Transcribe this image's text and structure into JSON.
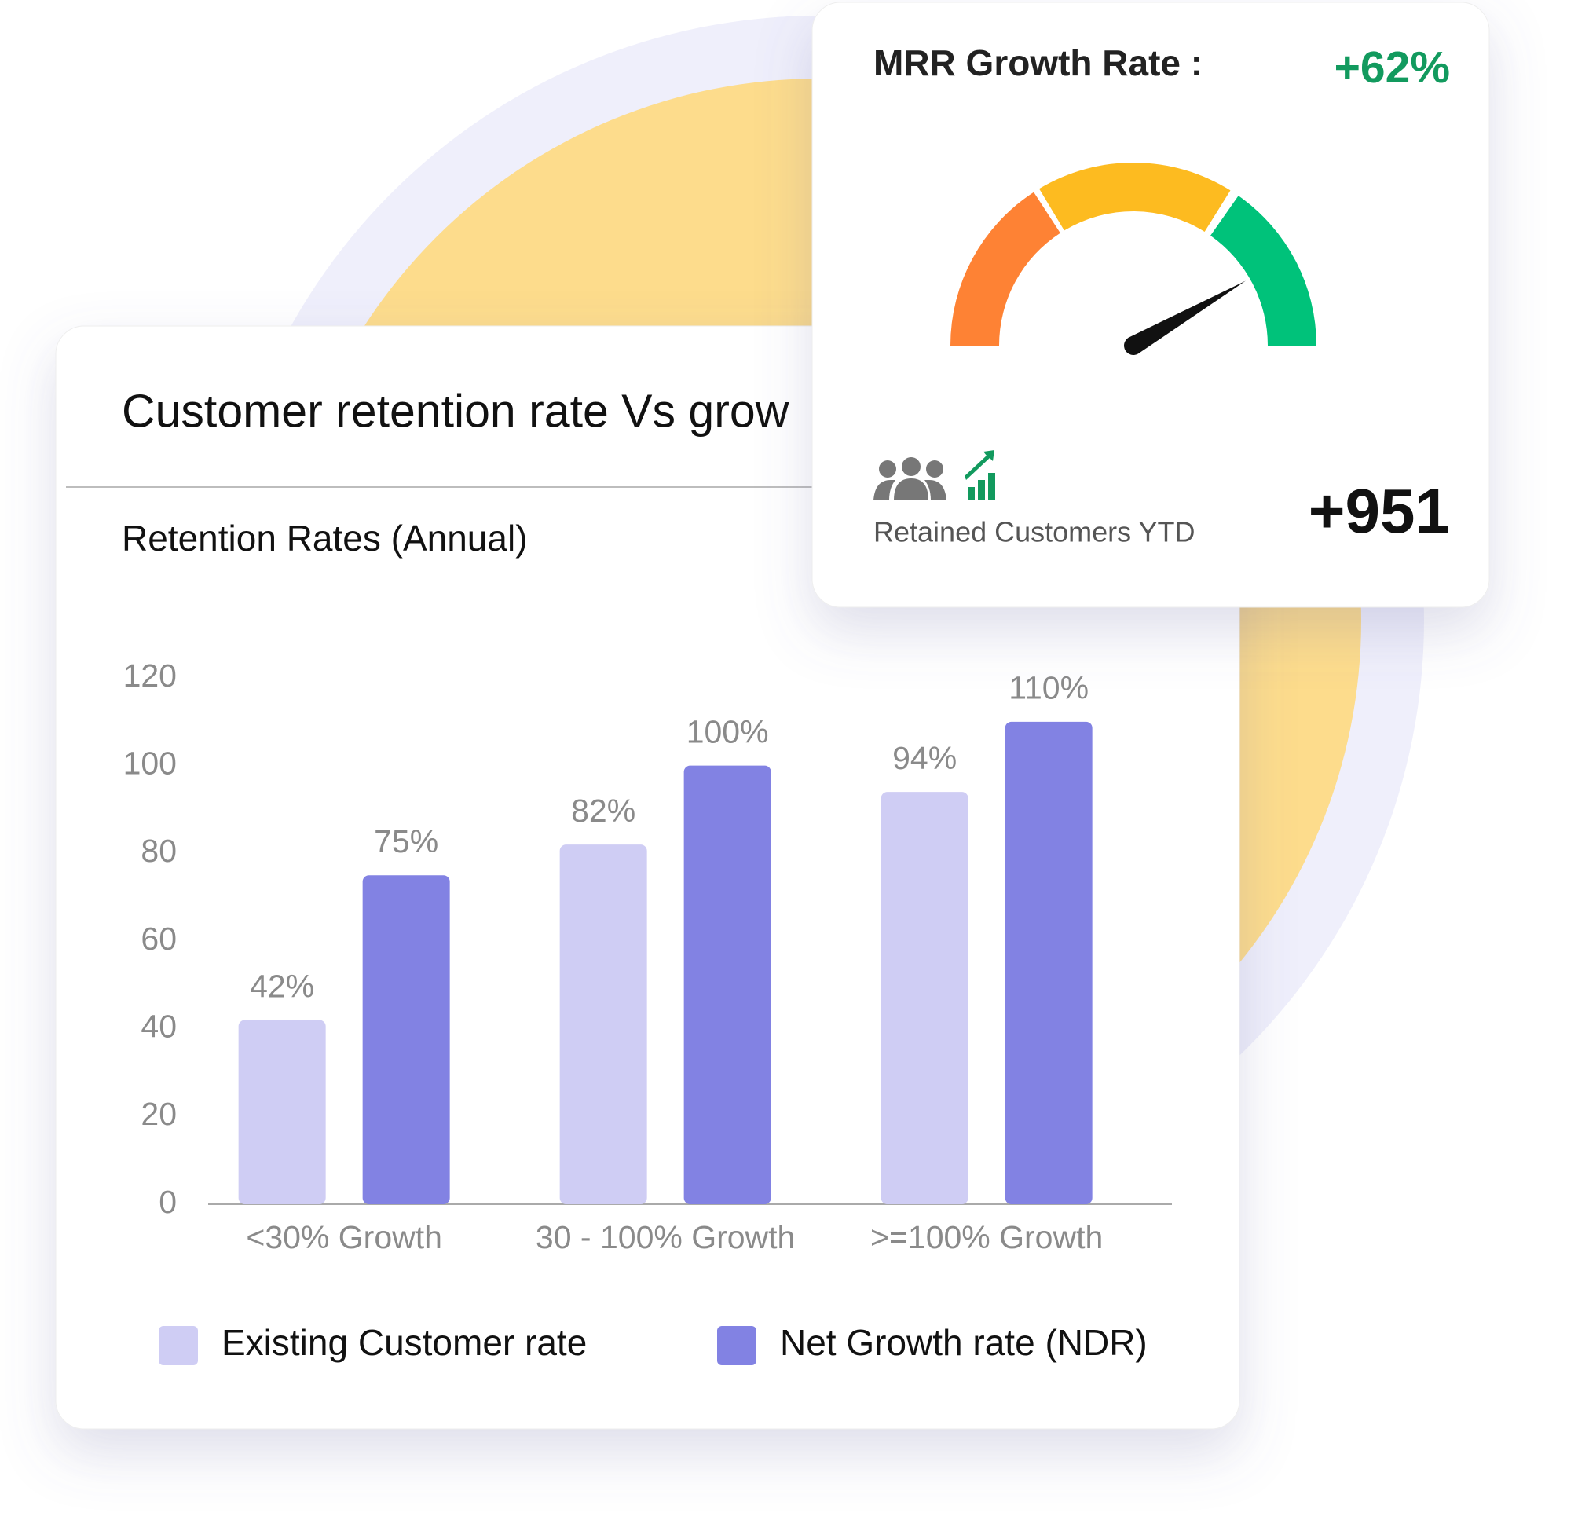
{
  "chart_data": {
    "type": "bar",
    "title": "Customer retention rate Vs grow",
    "subtitle": "Retention Rates (Annual)",
    "categories": [
      "<30% Growth",
      "30 - 100% Growth",
      ">=100% Growth"
    ],
    "series": [
      {
        "name": "Existing Customer rate",
        "color": "#cfcdf4",
        "values": [
          42,
          82,
          94
        ],
        "value_labels": [
          "42%",
          "82%",
          "94%"
        ]
      },
      {
        "name": "Net Growth rate (NDR)",
        "color": "#8282e3",
        "values": [
          75,
          100,
          110
        ],
        "value_labels": [
          "75%",
          "100%",
          "110%"
        ]
      }
    ],
    "ylim": [
      0,
      120
    ],
    "yticks": [
      0,
      20,
      40,
      60,
      80,
      100,
      120
    ],
    "grid": false,
    "legend": "bottom"
  },
  "mrr_card": {
    "title": "MRR Growth Rate :",
    "value": "+62%",
    "retained_label": "Retained Customers YTD",
    "retained_value": "+951"
  }
}
